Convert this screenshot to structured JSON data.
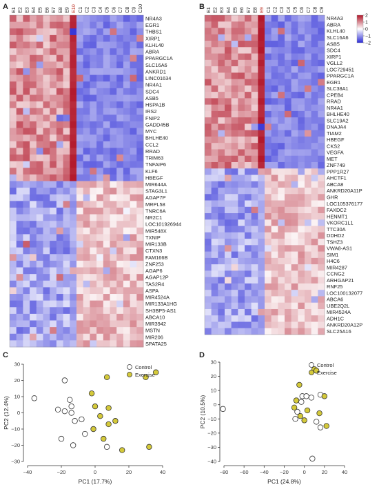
{
  "panels": [
    {
      "label": "A",
      "columns": [
        "E1",
        "E2",
        "E3",
        "E4",
        "E5",
        "E6",
        "E7",
        "E8",
        "E9",
        "E10",
        "C1",
        "C2",
        "C3",
        "C4",
        "C5",
        "C6",
        "C7",
        "C8",
        "C9",
        "C10"
      ],
      "genes": [
        "NR4A3",
        "EGR1",
        "THBS1",
        "XIRP1",
        "KLHL40",
        "ABRA",
        "PPARGC1A",
        "SLC16A6",
        "ANKRD1",
        "LINC01634",
        "NR4A1",
        "SDC4",
        "ASB5",
        "HSPA1B",
        "IRS2",
        "FNIP2",
        "GADD45B",
        "MYC",
        "BHLHE40",
        "CCL2",
        "RRAD",
        "TRIM63",
        "TNFAIP6",
        "KLF6",
        "HBEGF",
        "MIR644A",
        "STAG3L1",
        "AGAP7P",
        "MRPL58",
        "TNRC6A",
        "NR2C1",
        "LOC101926944",
        "MIR548X",
        "TXNIP",
        "MIR133B",
        "CTXN3",
        "FAM166B",
        "ZNF253",
        "AGAP6",
        "AGAP12P",
        "TAS2R4",
        "ASPA",
        "MIR4524A",
        "MIR133A1HG",
        "SH3BP5-AS1",
        "ABCA10",
        "MIR3942",
        "MSTN",
        "MIR206",
        "SPATA25"
      ],
      "up_count": 25,
      "hot_column": "E10"
    },
    {
      "label": "B",
      "columns": [
        "E1",
        "E2",
        "E3",
        "E4",
        "E5",
        "E6",
        "E7",
        "E8",
        "E9",
        "C1",
        "C2",
        "C3",
        "C4",
        "C5",
        "C6",
        "C7",
        "C8",
        "C9"
      ],
      "genes": [
        "NR4A3",
        "ABRA",
        "KLHL40",
        "SLC16A6",
        "ASB5",
        "SDC4",
        "XIRP1",
        "VGLL2",
        "LOC729451",
        "PPARGC1A",
        "EGR1",
        "SLC38A1",
        "CPEB4",
        "RRAD",
        "NR4A1",
        "BHLHE40",
        "SLC19A2",
        "DNAJA4",
        "TIAM2",
        "HBEGF",
        "CKS2",
        "VEGFA",
        "MET",
        "ZNF749",
        "PPP1R27",
        "AHCTF1",
        "ABCA8",
        "ANKRD20A11P",
        "GHR",
        "LOC105376177",
        "FAXDC2",
        "HENMT1",
        "VKORC1L1",
        "TTC30A",
        "DDHD2",
        "TSHZ3",
        "VWA8-AS1",
        "SIM1",
        "H4C6",
        "MIR4287",
        "CCNG2",
        "ARHGAP21",
        "RNF25",
        "LOC100132077",
        "ABCA6",
        "UBE2Q2L",
        "MIR4524A",
        "ADH1C",
        "ANKRD20A12P",
        "SLC25A16"
      ],
      "up_count": 24,
      "hot_column": "E9",
      "colorbar": {
        "ticks": [
          "2",
          "1",
          "0",
          "−1",
          "−2"
        ],
        "high": "#b2182b",
        "mid": "#ffffff",
        "low": "#2c2cd6"
      }
    }
  ],
  "chart_data": [
    {
      "panel": "C",
      "type": "scatter",
      "xlabel": "PC1 (17.7%)",
      "ylabel": "PC2 (12.4%)",
      "xlim": [
        -40,
        40
      ],
      "ylim": [
        -30,
        30
      ],
      "xticks": [
        -40,
        -20,
        0,
        20,
        40
      ],
      "yticks": [
        -30,
        -20,
        -10,
        0,
        10,
        20,
        30
      ],
      "legend": "top-right",
      "series": [
        {
          "name": "Control",
          "color": "#ffffff",
          "points": [
            [
              -36,
              9
            ],
            [
              -18,
              20
            ],
            [
              -15,
              8
            ],
            [
              -14,
              4
            ],
            [
              -18,
              1
            ],
            [
              -14,
              0
            ],
            [
              -22,
              2
            ],
            [
              -8,
              -4
            ],
            [
              -12,
              -5
            ],
            [
              -20,
              -16
            ],
            [
              -6,
              -13
            ],
            [
              -13,
              -20
            ],
            [
              7,
              -21
            ]
          ]
        },
        {
          "name": "Exercise",
          "color": "#d4c93a",
          "points": [
            [
              30,
              22
            ],
            [
              36,
              25
            ],
            [
              7,
              22
            ],
            [
              -2,
              12
            ],
            [
              0,
              4
            ],
            [
              8,
              3
            ],
            [
              3,
              -2
            ],
            [
              12,
              -5
            ],
            [
              -1,
              -10
            ],
            [
              8,
              -7
            ],
            [
              5,
              -16
            ],
            [
              16,
              -23
            ],
            [
              32,
              -21
            ]
          ]
        }
      ]
    },
    {
      "panel": "D",
      "type": "scatter",
      "xlabel": "PC1 (24.8%)",
      "ylabel": "PC2 (10.5%)",
      "xlim": [
        -80,
        40
      ],
      "ylim": [
        -40,
        30
      ],
      "xticks": [
        -80,
        -60,
        -40,
        -20,
        0,
        20,
        40
      ],
      "yticks": [
        -40,
        -30,
        -20,
        -10,
        0,
        10,
        20,
        30
      ],
      "legend": "top-right",
      "series": [
        {
          "name": "Control",
          "color": "#ffffff",
          "points": [
            [
              -81,
              -3
            ],
            [
              -2,
              6
            ],
            [
              2,
              6
            ],
            [
              7,
              5
            ],
            [
              -8,
              3
            ],
            [
              -3,
              2
            ],
            [
              -7,
              -5
            ],
            [
              -9,
              -10
            ],
            [
              12,
              -12
            ],
            [
              16,
              7
            ],
            [
              16,
              -16
            ],
            [
              8,
              -38
            ]
          ]
        },
        {
          "name": "Exercise",
          "color": "#d4c93a",
          "points": [
            [
              10,
              25
            ],
            [
              12,
              24
            ],
            [
              -5,
              14
            ],
            [
              -8,
              3
            ],
            [
              3,
              -4
            ],
            [
              20,
              6
            ],
            [
              -10,
              -2
            ],
            [
              -4,
              -8
            ],
            [
              0,
              -11
            ],
            [
              15,
              -6
            ],
            [
              22,
              -15
            ]
          ]
        }
      ]
    }
  ]
}
